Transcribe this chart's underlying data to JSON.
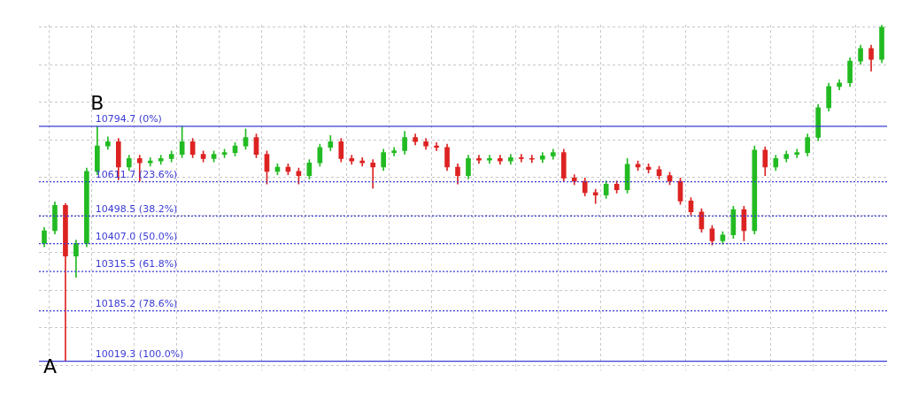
{
  "chart_data": {
    "type": "candlestick",
    "categories": [
      null,
      null,
      null,
      null,
      null,
      null,
      null,
      null,
      null,
      null,
      null,
      null,
      null,
      null,
      null,
      null,
      null,
      null,
      null,
      null,
      null,
      null,
      null,
      null,
      null,
      null,
      null,
      null,
      null,
      null,
      null,
      null,
      null,
      null,
      null,
      null,
      null,
      null,
      null,
      null,
      null,
      null,
      null,
      null,
      null,
      null,
      null,
      null,
      null,
      null,
      null,
      null,
      null,
      null,
      null,
      null,
      null,
      null,
      null,
      null,
      null,
      null,
      null,
      null,
      null,
      null,
      null,
      null,
      null,
      null,
      null,
      null,
      null,
      null,
      null,
      null,
      null,
      null,
      null,
      null
    ],
    "ohlc": [
      [
        10408,
        10461,
        10397,
        10450
      ],
      [
        10450,
        10545,
        10439,
        10534
      ],
      [
        10534,
        10540,
        10019.3,
        10366
      ],
      [
        10366,
        10419,
        10296,
        10408
      ],
      [
        10408,
        10657,
        10397,
        10646
      ],
      [
        10646,
        10794.7,
        10635,
        10730
      ],
      [
        10730,
        10760,
        10719,
        10744
      ],
      [
        10744,
        10755,
        10618,
        10660
      ],
      [
        10660,
        10699,
        10649,
        10688
      ],
      [
        10688,
        10699,
        10613,
        10674
      ],
      [
        10674,
        10691,
        10663,
        10680
      ],
      [
        10680,
        10699,
        10669,
        10688
      ],
      [
        10688,
        10713,
        10677,
        10702
      ],
      [
        10702,
        10794.7,
        10691,
        10744
      ],
      [
        10744,
        10755,
        10691,
        10702
      ],
      [
        10702,
        10713,
        10677,
        10688
      ],
      [
        10688,
        10713,
        10677,
        10702
      ],
      [
        10702,
        10719,
        10691,
        10708
      ],
      [
        10708,
        10741,
        10697,
        10730
      ],
      [
        10730,
        10786,
        10719,
        10758
      ],
      [
        10758,
        10769,
        10691,
        10702
      ],
      [
        10702,
        10713,
        10604,
        10646
      ],
      [
        10646,
        10671,
        10635,
        10660
      ],
      [
        10660,
        10671,
        10635,
        10646
      ],
      [
        10646,
        10657,
        10604,
        10632
      ],
      [
        10632,
        10685,
        10621,
        10674
      ],
      [
        10674,
        10736,
        10663,
        10725
      ],
      [
        10725,
        10764,
        10714,
        10744
      ],
      [
        10744,
        10755,
        10677,
        10688
      ],
      [
        10688,
        10699,
        10669,
        10680
      ],
      [
        10680,
        10691,
        10663,
        10674
      ],
      [
        10674,
        10685,
        10590,
        10660
      ],
      [
        10660,
        10719,
        10649,
        10708
      ],
      [
        10708,
        10725,
        10697,
        10714
      ],
      [
        10714,
        10778,
        10703,
        10758
      ],
      [
        10758,
        10769,
        10733,
        10744
      ],
      [
        10744,
        10755,
        10719,
        10730
      ],
      [
        10730,
        10741,
        10714,
        10725
      ],
      [
        10725,
        10736,
        10649,
        10660
      ],
      [
        10660,
        10671,
        10604,
        10632
      ],
      [
        10632,
        10699,
        10621,
        10688
      ],
      [
        10688,
        10699,
        10672,
        10683
      ],
      [
        10683,
        10699,
        10672,
        10688
      ],
      [
        10688,
        10699,
        10669,
        10680
      ],
      [
        10680,
        10702,
        10669,
        10691
      ],
      [
        10691,
        10702,
        10677,
        10688
      ],
      [
        10688,
        10699,
        10675,
        10686
      ],
      [
        10686,
        10708,
        10675,
        10697
      ],
      [
        10697,
        10719,
        10686,
        10708
      ],
      [
        10708,
        10719,
        10613,
        10624
      ],
      [
        10624,
        10635,
        10602,
        10613
      ],
      [
        10613,
        10624,
        10565,
        10576
      ],
      [
        10576,
        10587,
        10540,
        10568
      ],
      [
        10568,
        10615,
        10557,
        10604
      ],
      [
        10604,
        10615,
        10574,
        10585
      ],
      [
        10585,
        10688,
        10574,
        10669
      ],
      [
        10669,
        10680,
        10649,
        10660
      ],
      [
        10660,
        10671,
        10641,
        10652
      ],
      [
        10652,
        10663,
        10621,
        10632
      ],
      [
        10632,
        10643,
        10602,
        10613
      ],
      [
        10613,
        10624,
        10537,
        10548
      ],
      [
        10548,
        10559,
        10501,
        10512
      ],
      [
        10512,
        10523,
        10445,
        10456
      ],
      [
        10456,
        10467,
        10403,
        10417
      ],
      [
        10417,
        10447,
        10406,
        10436
      ],
      [
        10436,
        10531,
        10425,
        10520
      ],
      [
        10520,
        10531,
        10417,
        10450
      ],
      [
        10450,
        10730,
        10439,
        10716
      ],
      [
        10716,
        10727,
        10632,
        10660
      ],
      [
        10660,
        10699,
        10649,
        10688
      ],
      [
        10688,
        10713,
        10677,
        10702
      ],
      [
        10702,
        10719,
        10691,
        10708
      ],
      [
        10708,
        10769,
        10697,
        10758
      ],
      [
        10758,
        10867,
        10747,
        10856
      ],
      [
        10856,
        10937,
        10845,
        10926
      ],
      [
        10926,
        10949,
        10915,
        10938
      ],
      [
        10938,
        11021,
        10927,
        11010
      ],
      [
        11010,
        11063,
        10999,
        11052
      ],
      [
        11052,
        11063,
        10977,
        11016
      ],
      [
        11016,
        11128,
        11005,
        11122
      ]
    ],
    "colors": [
      "#22bb22",
      "#22bb22",
      "#dd2222",
      "#22bb22",
      "#22bb22",
      "#22bb22",
      "#22bb22",
      "#dd2222",
      "#22bb22",
      "#dd2222",
      "#22bb22",
      "#22bb22",
      "#22bb22",
      "#22bb22",
      "#dd2222",
      "#dd2222",
      "#22bb22",
      "#22bb22",
      "#22bb22",
      "#22bb22",
      "#dd2222",
      "#dd2222",
      "#22bb22",
      "#dd2222",
      "#dd2222",
      "#22bb22",
      "#22bb22",
      "#22bb22",
      "#dd2222",
      "#dd2222",
      "#dd2222",
      "#dd2222",
      "#22bb22",
      "#22bb22",
      "#22bb22",
      "#dd2222",
      "#dd2222",
      "#dd2222",
      "#dd2222",
      "#dd2222",
      "#22bb22",
      "#dd2222",
      "#22bb22",
      "#dd2222",
      "#22bb22",
      "#dd2222",
      "#dd2222",
      "#22bb22",
      "#22bb22",
      "#dd2222",
      "#dd2222",
      "#dd2222",
      "#dd2222",
      "#22bb22",
      "#dd2222",
      "#22bb22",
      "#dd2222",
      "#dd2222",
      "#dd2222",
      "#dd2222",
      "#dd2222",
      "#dd2222",
      "#dd2222",
      "#dd2222",
      "#22bb22",
      "#22bb22",
      "#dd2222",
      "#22bb22",
      "#dd2222",
      "#22bb22",
      "#22bb22",
      "#22bb22",
      "#22bb22",
      "#22bb22",
      "#22bb22",
      "#22bb22",
      "#22bb22",
      "#22bb22",
      "#dd2222",
      "#22bb22"
    ],
    "ylim": [
      9990,
      11130
    ],
    "yticks": [
      {
        "value": 10006,
        "label": null
      },
      {
        "value": 10130,
        "label": null
      },
      {
        "value": 10254,
        "label": null
      },
      {
        "value": 10378,
        "label": null
      },
      {
        "value": 10502,
        "label": null
      },
      {
        "value": 10626,
        "label": null
      },
      {
        "value": 10750,
        "label": null
      },
      {
        "value": 10874,
        "label": null
      },
      {
        "value": 10998,
        "label": null
      },
      {
        "value": 11122,
        "label": null
      }
    ],
    "grid": true,
    "legend": false,
    "ref_lines": [
      {
        "axis": "y",
        "value": 10794.7,
        "label": "10794.7 (0%)",
        "color": "#3b3bd6",
        "line_style": "solid"
      },
      {
        "axis": "y",
        "value": 10611.7,
        "label": "10611.7 (23.6%)",
        "color": "#3b3bd6",
        "line_style": "dotted"
      },
      {
        "axis": "y",
        "value": 10498.5,
        "label": "10498.5 (38.2%)",
        "color": "#3b3bd6",
        "line_style": "dotted"
      },
      {
        "axis": "y",
        "value": 10407.0,
        "label": "10407.0 (50.0%)",
        "color": "#3b3bd6",
        "line_style": "dotted"
      },
      {
        "axis": "y",
        "value": 10315.5,
        "label": "10315.5 (61.8%)",
        "color": "#3b3bd6",
        "line_style": "dotted"
      },
      {
        "axis": "y",
        "value": 10185.2,
        "label": "10185.2 (78.6%)",
        "color": "#3b3bd6",
        "line_style": "dotted"
      },
      {
        "axis": "y",
        "value": 10019.3,
        "label": "10019.3 (100.0%)",
        "color": "#3b3bd6",
        "line_style": "solid"
      }
    ],
    "annotations": [
      {
        "text": "A",
        "y": 10019.3
      },
      {
        "text": "B",
        "y": 10794.7
      }
    ]
  }
}
